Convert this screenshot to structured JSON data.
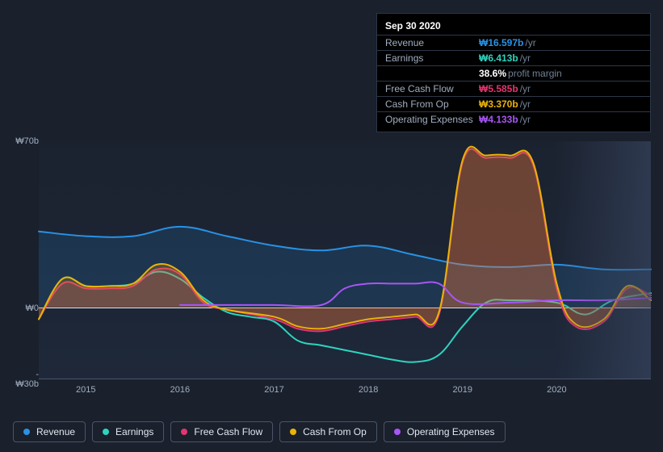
{
  "tooltip": {
    "date": "Sep 30 2020",
    "rows": [
      {
        "label": "Revenue",
        "value": "₩16.597b",
        "suffix": "/yr",
        "color": "#2992e5"
      },
      {
        "label": "Earnings",
        "value": "₩6.413b",
        "suffix": "/yr",
        "color": "#2dd4bf"
      },
      {
        "label": "",
        "value": "38.6%",
        "suffix": "profit margin",
        "indent": true,
        "color": "#ffffff"
      },
      {
        "label": "Free Cash Flow",
        "value": "₩5.585b",
        "suffix": "/yr",
        "color": "#e23670"
      },
      {
        "label": "Cash From Op",
        "value": "₩3.370b",
        "suffix": "/yr",
        "color": "#eab308"
      },
      {
        "label": "Operating Expenses",
        "value": "₩4.133b",
        "suffix": "/yr",
        "color": "#a855f7"
      }
    ]
  },
  "chart": {
    "type": "line-area",
    "background_color": "#1a202c",
    "plot_bg": "rgba(30,41,59,0.5)",
    "grid_color": "#4a5568",
    "zero_line_color": "#e2e8f0",
    "y_axis": {
      "min": -30,
      "max": 70,
      "labels": [
        {
          "v": 70,
          "text": "₩70b"
        },
        {
          "v": 0,
          "text": "₩0"
        },
        {
          "v": -30,
          "text": "-₩30b"
        }
      ]
    },
    "x_axis": {
      "min": 2014.5,
      "max": 2021,
      "labels": [
        2015,
        2016,
        2017,
        2018,
        2019,
        2020
      ]
    },
    "series": [
      {
        "name": "Revenue",
        "color": "#2992e5",
        "fill_opacity": 0.15,
        "width": 2,
        "points": [
          [
            2014.5,
            32
          ],
          [
            2015,
            30
          ],
          [
            2015.5,
            30
          ],
          [
            2016,
            34
          ],
          [
            2016.5,
            30
          ],
          [
            2017,
            26
          ],
          [
            2017.5,
            24
          ],
          [
            2018,
            26
          ],
          [
            2018.5,
            22
          ],
          [
            2019,
            18
          ],
          [
            2019.5,
            17
          ],
          [
            2020,
            18
          ],
          [
            2020.5,
            16
          ],
          [
            2021,
            16
          ]
        ]
      },
      {
        "name": "Earnings",
        "color": "#2dd4bf",
        "fill_opacity": 0,
        "width": 2,
        "points": [
          [
            2014.5,
            -5
          ],
          [
            2014.75,
            12
          ],
          [
            2015,
            9
          ],
          [
            2015.25,
            9
          ],
          [
            2015.5,
            10
          ],
          [
            2015.75,
            15
          ],
          [
            2016,
            12
          ],
          [
            2016.25,
            4
          ],
          [
            2016.5,
            -2
          ],
          [
            2016.75,
            -4
          ],
          [
            2017,
            -6
          ],
          [
            2017.25,
            -14
          ],
          [
            2017.5,
            -16
          ],
          [
            2017.75,
            -18
          ],
          [
            2018,
            -20
          ],
          [
            2018.25,
            -22
          ],
          [
            2018.5,
            -23
          ],
          [
            2018.75,
            -20
          ],
          [
            2019,
            -8
          ],
          [
            2019.25,
            2
          ],
          [
            2019.5,
            3
          ],
          [
            2020,
            2
          ],
          [
            2020.3,
            -3
          ],
          [
            2020.6,
            3
          ],
          [
            2021,
            6
          ]
        ]
      },
      {
        "name": "Free Cash Flow",
        "color": "#e23670",
        "fill_opacity": 0.25,
        "width": 2,
        "points": [
          [
            2014.5,
            -5
          ],
          [
            2014.75,
            10
          ],
          [
            2015,
            8
          ],
          [
            2015.25,
            8
          ],
          [
            2015.5,
            9
          ],
          [
            2015.75,
            16
          ],
          [
            2016,
            14
          ],
          [
            2016.25,
            2
          ],
          [
            2016.5,
            -1
          ],
          [
            2017,
            -5
          ],
          [
            2017.25,
            -9
          ],
          [
            2017.5,
            -10
          ],
          [
            2017.75,
            -8
          ],
          [
            2018,
            -6
          ],
          [
            2018.25,
            -5
          ],
          [
            2018.5,
            -4
          ],
          [
            2018.75,
            -3
          ],
          [
            2019,
            61
          ],
          [
            2019.25,
            63
          ],
          [
            2019.5,
            63
          ],
          [
            2019.75,
            60
          ],
          [
            2020,
            8
          ],
          [
            2020.2,
            -8
          ],
          [
            2020.5,
            -6
          ],
          [
            2020.75,
            8
          ],
          [
            2021,
            5
          ]
        ]
      },
      {
        "name": "Cash From Op",
        "color": "#eab308",
        "fill_opacity": 0.2,
        "width": 2,
        "points": [
          [
            2014.5,
            -5
          ],
          [
            2014.75,
            12
          ],
          [
            2015,
            9
          ],
          [
            2015.25,
            9
          ],
          [
            2015.5,
            10
          ],
          [
            2015.75,
            18
          ],
          [
            2016,
            15
          ],
          [
            2016.25,
            3
          ],
          [
            2016.5,
            -1
          ],
          [
            2017,
            -4
          ],
          [
            2017.25,
            -8
          ],
          [
            2017.5,
            -9
          ],
          [
            2017.75,
            -7
          ],
          [
            2018,
            -5
          ],
          [
            2018.25,
            -4
          ],
          [
            2018.5,
            -3
          ],
          [
            2018.75,
            -2
          ],
          [
            2019,
            62
          ],
          [
            2019.25,
            64
          ],
          [
            2019.5,
            64
          ],
          [
            2019.75,
            61
          ],
          [
            2020,
            10
          ],
          [
            2020.2,
            -7
          ],
          [
            2020.5,
            -5
          ],
          [
            2020.75,
            9
          ],
          [
            2021,
            3
          ]
        ]
      },
      {
        "name": "Operating Expenses",
        "color": "#a855f7",
        "fill_opacity": 0,
        "width": 2,
        "points": [
          [
            2016,
            1
          ],
          [
            2016.5,
            1
          ],
          [
            2017,
            1
          ],
          [
            2017.5,
            1
          ],
          [
            2017.75,
            8
          ],
          [
            2018,
            10
          ],
          [
            2018.25,
            10
          ],
          [
            2018.5,
            10
          ],
          [
            2018.75,
            10
          ],
          [
            2019,
            2
          ],
          [
            2019.5,
            2
          ],
          [
            2020,
            3
          ],
          [
            2020.5,
            3
          ],
          [
            2021,
            4
          ]
        ]
      }
    ]
  },
  "legend": [
    {
      "label": "Revenue",
      "color": "#2992e5"
    },
    {
      "label": "Earnings",
      "color": "#2dd4bf"
    },
    {
      "label": "Free Cash Flow",
      "color": "#e23670"
    },
    {
      "label": "Cash From Op",
      "color": "#eab308"
    },
    {
      "label": "Operating Expenses",
      "color": "#a855f7"
    }
  ]
}
